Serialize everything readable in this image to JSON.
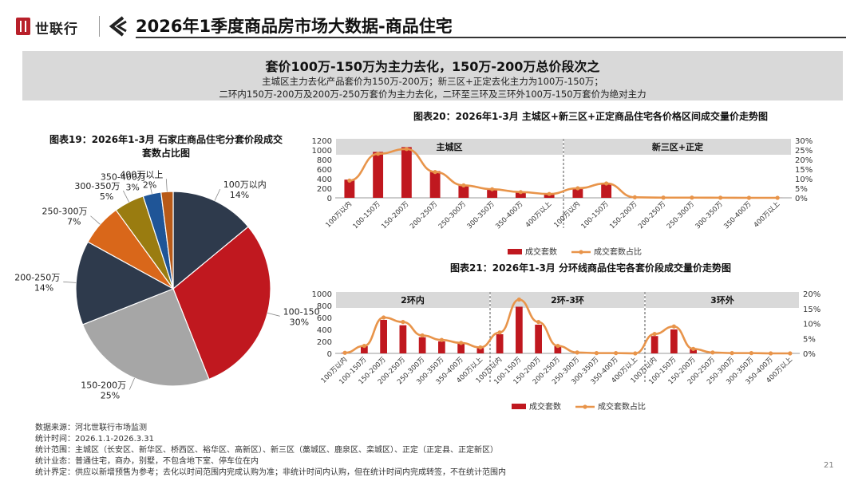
{
  "header": {
    "brand": "世联行",
    "title": "2026年1季度商品房市场大数据-商品住宅"
  },
  "summary": {
    "headline": "套价100万-150万为主力去化，150万-200万总价段次之",
    "line1": "主城区主力去化产品套价为150万-200万；新三区+正定去化主力为100万-150万；",
    "line2": "二环内150万-200万及200万-250万套价为主力去化，二环至三环及三环外100万-150万套价为绝对主力"
  },
  "footer": {
    "source": "数据来源：河北世联行市场监测",
    "period": "统计时间：2026.1.1-2026.3.31",
    "scope": "统计范围：主城区（长安区、新华区、桥西区、裕华区、高新区）、新三区（藁城区、鹿泉区、栾城区）、正定（正定县、正定新区）",
    "type": "统计业态：普通住宅，商办，别墅，不包含地下室、停车位在内",
    "rule": "统计界定：供应以新增预售为参考；去化以时间范围内完成认购为准；非统计时间内认购，但在统计时间内完成转签，不在统计范围内",
    "page": "21"
  },
  "chart_data": [
    {
      "type": "pie",
      "title": "图表19：2026年1-3月 石家庄商品住宅分套价段成交套数占比图",
      "slices": [
        {
          "label": "100万以内",
          "value": 14,
          "display": "14%",
          "color": "#2e3a4c"
        },
        {
          "label": "100-150万",
          "value": 30,
          "display": "30%",
          "color": "#c0181f"
        },
        {
          "label": "150-200万",
          "value": 25,
          "display": "25%",
          "color": "#a6a6a6"
        },
        {
          "label": "200-250万",
          "value": 14,
          "display": "14%",
          "color": "#2e3a4c"
        },
        {
          "label": "250-300万",
          "value": 7,
          "display": "7%",
          "color": "#d9671a"
        },
        {
          "label": "300-350万",
          "value": 5,
          "display": "5%",
          "color": "#9a7c10"
        },
        {
          "label": "350-400万",
          "value": 3,
          "display": "3%",
          "color": "#1f5597"
        },
        {
          "label": "400万以上",
          "value": 2,
          "display": "2%",
          "color": "#b85a18"
        }
      ]
    },
    {
      "type": "bar",
      "title": "图表20：2026年1-3月 主城区+新三区+正定商品住宅各价格区间成交量价走势图",
      "groups": [
        "主城区",
        "新三区+正定"
      ],
      "categories": [
        "100万以内",
        "100-150万",
        "150-200万",
        "200-250万",
        "250-300万",
        "300-350万",
        "350-400万",
        "400万以上",
        "100万以内",
        "100-150万",
        "150-200万",
        "200-250万",
        "250-300万",
        "300-350万",
        "350-400万",
        "400万以上"
      ],
      "series": [
        {
          "name": "成交套数",
          "kind": "bar",
          "axis": "left",
          "color": "#c0181f",
          "values": [
            380,
            960,
            1060,
            560,
            270,
            180,
            130,
            80,
            200,
            300,
            10,
            5,
            3,
            2,
            1,
            1
          ]
        },
        {
          "name": "成交套数占比",
          "kind": "line",
          "axis": "right",
          "color": "#e8944a",
          "values": [
            9,
            23,
            25.5,
            13.5,
            6.5,
            4.5,
            3,
            2,
            5,
            7.5,
            0.3,
            0.1,
            0.1,
            0.05,
            0,
            0
          ]
        }
      ],
      "yticks": [
        0,
        200,
        400,
        600,
        800,
        1000,
        1200
      ],
      "ytick_labels": [
        "0",
        "200",
        "400",
        "600",
        "800",
        "1000",
        "1200"
      ],
      "y2ticks": [
        0,
        5,
        10,
        15,
        20,
        25,
        30
      ],
      "y2tick_labels": [
        "0%",
        "5%",
        "10%",
        "15%",
        "20%",
        "25%",
        "30%"
      ],
      "ylim": [
        0,
        1200
      ],
      "y2lim": [
        0,
        30
      ],
      "legend": [
        "成交套数",
        "成交套数占比"
      ]
    },
    {
      "type": "bar",
      "title": "图表21：2026年1-3月 分环线商品住宅各套价段成交量价走势图",
      "groups": [
        "2环内",
        "2环-3环",
        "3环外"
      ],
      "categories": [
        "100万以内",
        "100-150万",
        "150-200万",
        "200-250万",
        "250-300万",
        "300-350万",
        "350-400万",
        "400万以上",
        "100万以内",
        "100-150万",
        "150-200万",
        "200-250万",
        "250-300万",
        "300-350万",
        "350-400万",
        "400万以上",
        "100万以内",
        "100-150万",
        "150-200万",
        "200-250万",
        "250-300万",
        "300-350万",
        "350-400万",
        "400万以上"
      ],
      "series": [
        {
          "name": "成交套数",
          "kind": "bar",
          "axis": "left",
          "color": "#c0181f",
          "values": [
            10,
            120,
            560,
            470,
            270,
            200,
            160,
            90,
            320,
            780,
            480,
            120,
            15,
            5,
            3,
            2,
            290,
            400,
            70,
            10,
            5,
            3,
            2,
            1
          ]
        },
        {
          "name": "成交套数占比",
          "kind": "line",
          "axis": "right",
          "color": "#e8944a",
          "values": [
            0.2,
            2.5,
            12,
            10.5,
            6,
            4.5,
            3.5,
            2,
            7,
            18,
            10.5,
            2.5,
            0.3,
            0.1,
            0.1,
            0,
            6.5,
            9,
            1.5,
            0.3,
            0.1,
            0.1,
            0,
            0
          ]
        }
      ],
      "yticks": [
        0,
        200,
        400,
        600,
        800,
        1000
      ],
      "ytick_labels": [
        "0",
        "200",
        "400",
        "600",
        "800",
        "1000"
      ],
      "y2ticks": [
        0,
        5,
        10,
        15,
        20
      ],
      "y2tick_labels": [
        "0%",
        "5%",
        "10%",
        "15%",
        "20%"
      ],
      "ylim": [
        0,
        1000
      ],
      "y2lim": [
        0,
        20
      ],
      "legend": [
        "成交套数",
        "成交套数占比"
      ]
    }
  ]
}
